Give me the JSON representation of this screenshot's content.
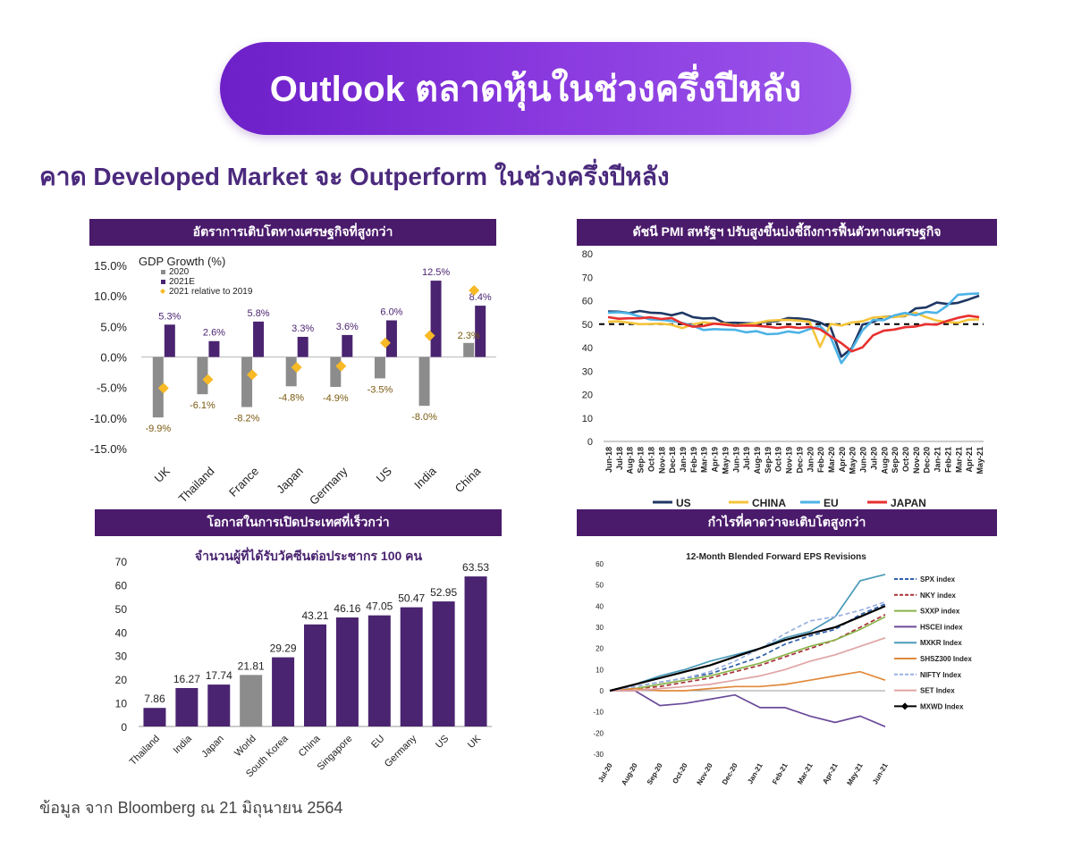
{
  "header": {
    "title": "Outlook ตลาดหุ้นในช่วงครึ่งปีหลัง",
    "subtitle": "คาด Developed Market จะ Outperform ในช่วงครึ่งปีหลัง"
  },
  "footer": "ข้อมูล จาก Bloomberg ณ 21 มิถุนายน 2564",
  "panels": {
    "gdp_header": "อัตราการเติบโตทางเศรษฐกิจที่สูงกว่า",
    "pmi_header": "ดัชนี PMI สหรัฐฯ ปรับสูงขึ้นบ่งชี้ถึงการฟื้นตัวทางเศรษฐกิจ",
    "vac_header": "โอกาสในการเปิดประเทศที่เร็วกว่า",
    "eps_header": "กำไรที่คาดว่าจะเติบโตสูงกว่า"
  },
  "colors": {
    "purple_dark": "#3f1d63",
    "purple_bar": "#4a2470",
    "gray_bar": "#8c8c8c",
    "diamond": "#f7b926",
    "us": "#1f3864",
    "china": "#f4c43b",
    "eu": "#4db3e6",
    "japan": "#e8302f"
  },
  "chart_data": [
    {
      "type": "bar",
      "title": "GDP Growth (%)",
      "categories": [
        "UK",
        "Thailand",
        "France",
        "Japan",
        "Germany",
        "US",
        "India",
        "China"
      ],
      "series": [
        {
          "name": "2020",
          "values": [
            -9.9,
            -6.1,
            -8.2,
            -4.8,
            -4.9,
            -3.5,
            -8.0,
            2.3
          ],
          "labels": [
            "-9.9%",
            "-6.1%",
            "-8.2%",
            "-4.8%",
            "-4.9%",
            "-3.5%",
            "-8.0%",
            "2.3%"
          ]
        },
        {
          "name": "2021E",
          "values": [
            5.3,
            2.6,
            5.8,
            3.3,
            3.6,
            6.0,
            12.5,
            8.4
          ],
          "labels": [
            "5.3%",
            "2.6%",
            "5.8%",
            "3.3%",
            "3.6%",
            "6.0%",
            "12.5%",
            "8.4%"
          ]
        },
        {
          "name": "2021 relative to 2019",
          "values": [
            -5.1,
            -3.7,
            -2.9,
            -1.7,
            -1.5,
            2.3,
            3.5,
            10.9
          ]
        }
      ],
      "ylim": [
        -15,
        15
      ],
      "yticks": [
        "15.0%",
        "10.0%",
        "5.0%",
        "0.0%",
        "-5.0%",
        "-10.0%",
        "-15.0%"
      ],
      "legend": "top-left"
    },
    {
      "type": "line",
      "x": [
        "Jun-18",
        "Jul-18",
        "Aug-18",
        "Sep-18",
        "Oct-18",
        "Nov-18",
        "Dec-18",
        "Jan-19",
        "Feb-19",
        "Mar-19",
        "Apr-19",
        "May-19",
        "Jun-19",
        "Jul-19",
        "Aug-19",
        "Sep-19",
        "Oct-19",
        "Nov-19",
        "Dec-19",
        "Jan-20",
        "Feb-20",
        "Mar-20",
        "Apr-20",
        "May-20",
        "Jun-20",
        "Jul-20",
        "Aug-20",
        "Sep-20",
        "Oct-20",
        "Nov-20",
        "Dec-20",
        "Jan-21",
        "Feb-21",
        "Mar-21",
        "Apr-21",
        "May-21"
      ],
      "series": [
        {
          "name": "US",
          "values": [
            55.4,
            55.3,
            54.7,
            55.6,
            54.9,
            54.7,
            53.8,
            54.9,
            53.0,
            52.4,
            52.6,
            50.5,
            50.6,
            50.4,
            50.3,
            51.1,
            51.3,
            52.6,
            52.4,
            51.9,
            50.7,
            48.5,
            36.1,
            39.8,
            49.8,
            50.9,
            53.1,
            53.2,
            53.4,
            56.7,
            57.1,
            59.2,
            58.6,
            59.1,
            60.5,
            62.1
          ],
          "source_note": ""
        },
        {
          "name": "CHINA",
          "values": [
            51.0,
            51.2,
            50.6,
            50.0,
            50.1,
            50.2,
            49.7,
            48.3,
            49.9,
            50.8,
            50.2,
            50.2,
            49.4,
            49.9,
            50.4,
            51.4,
            51.7,
            51.8,
            51.5,
            51.1,
            40.3,
            50.1,
            49.4,
            50.7,
            51.2,
            52.8,
            53.1,
            53.0,
            53.6,
            54.9,
            53.0,
            51.5,
            50.9,
            50.6,
            51.9,
            52.0
          ]
        },
        {
          "name": "EU",
          "values": [
            54.9,
            55.1,
            54.6,
            53.2,
            52.0,
            51.8,
            51.4,
            50.5,
            49.3,
            47.5,
            47.9,
            47.7,
            47.6,
            46.5,
            47.0,
            45.7,
            45.9,
            46.9,
            46.3,
            47.9,
            49.2,
            44.5,
            33.4,
            39.4,
            47.4,
            51.8,
            51.7,
            53.7,
            54.8,
            53.8,
            55.2,
            54.8,
            57.9,
            62.5,
            62.9,
            63.1
          ]
        },
        {
          "name": "JAPAN",
          "values": [
            53.0,
            52.3,
            52.5,
            52.5,
            52.9,
            52.2,
            52.6,
            50.3,
            48.9,
            49.2,
            50.2,
            49.8,
            49.3,
            49.4,
            49.3,
            48.9,
            48.4,
            48.9,
            48.4,
            48.8,
            47.8,
            44.8,
            41.9,
            38.4,
            40.1,
            45.2,
            47.2,
            47.7,
            48.7,
            49.0,
            50.0,
            49.8,
            51.4,
            52.7,
            53.6,
            53.0
          ]
        }
      ],
      "threshold": 50,
      "ylim": [
        0,
        80
      ],
      "yticks": [
        "80",
        "70",
        "60",
        "50",
        "40",
        "30",
        "20",
        "10",
        "0"
      ],
      "legend": "bottom"
    },
    {
      "type": "bar",
      "title": "จำนวนผู้ที่ได้รับวัคซีนต่อประชากร 100 คน",
      "categories": [
        "Thailand",
        "India",
        "Japan",
        "World",
        "South Korea",
        "China",
        "Singapore",
        "EU",
        "Germany",
        "US",
        "UK"
      ],
      "values": [
        7.86,
        16.27,
        17.74,
        21.81,
        29.29,
        43.21,
        46.16,
        47.05,
        50.47,
        52.95,
        63.53
      ],
      "labels": [
        "7.86",
        "16.27",
        "17.74",
        "21.81",
        "29.29",
        "43.21",
        "46.16",
        "47.05",
        "50.47",
        "52.95",
        "63.53"
      ],
      "highlight": "World",
      "ylim": [
        0,
        70
      ],
      "yticks": [
        "70",
        "60",
        "50",
        "40",
        "30",
        "20",
        "10",
        "0"
      ]
    },
    {
      "type": "line",
      "title": "12-Month Blended Forward EPS Revisions",
      "x": [
        "Jul-20",
        "Aug-20",
        "Sep-20",
        "Oct-20",
        "Nov-20",
        "Dec-20",
        "Jan-21",
        "Feb-21",
        "Mar-21",
        "Apr-21",
        "May-21",
        "Jun-21"
      ],
      "series": [
        {
          "name": "SPX index",
          "color": "#2f5fa8",
          "dash": "5,3",
          "values": [
            0,
            2,
            4,
            6,
            8,
            12,
            16,
            22,
            26,
            29,
            36,
            41
          ]
        },
        {
          "name": "NKY index",
          "color": "#a8323a",
          "dash": "5,3",
          "values": [
            0,
            1,
            2,
            4,
            6,
            9,
            12,
            16,
            20,
            24,
            30,
            36
          ]
        },
        {
          "name": "SXXP index",
          "color": "#8ab44a",
          "dash": "",
          "values": [
            0,
            1,
            3,
            5,
            7,
            10,
            13,
            17,
            21,
            24,
            29,
            35
          ]
        },
        {
          "name": "HSCEI index",
          "color": "#6b4a9a",
          "dash": "",
          "values": [
            0,
            0,
            -7,
            -6,
            -4,
            -2,
            -8,
            -8,
            -12,
            -15,
            -12,
            -17
          ]
        },
        {
          "name": "MXKR Index",
          "color": "#4a9ab8",
          "dash": "",
          "values": [
            0,
            3,
            7,
            10,
            14,
            17,
            20,
            25,
            28,
            35,
            52,
            55
          ]
        },
        {
          "name": "SHSZ300 Index",
          "color": "#e0893a",
          "dash": "",
          "values": [
            0,
            1,
            0,
            0,
            1,
            2,
            2,
            3,
            5,
            7,
            9,
            5
          ]
        },
        {
          "name": "NIFTY Index",
          "color": "#9ab0e0",
          "dash": "5,3",
          "values": [
            0,
            2,
            4,
            6,
            9,
            14,
            20,
            27,
            33,
            35,
            38,
            42
          ]
        },
        {
          "name": "SET Index",
          "color": "#e0a4a4",
          "dash": "",
          "values": [
            0,
            0,
            1,
            2,
            3,
            5,
            7,
            10,
            14,
            17,
            21,
            25
          ]
        },
        {
          "name": "MXWD Index",
          "color": "#000000",
          "dash": "",
          "marker": "diamond",
          "values": [
            0,
            3,
            6,
            9,
            12,
            16,
            20,
            24,
            27,
            30,
            35,
            40
          ]
        }
      ],
      "ylim": [
        -30,
        60
      ],
      "yticks": [
        "60",
        "50",
        "40",
        "30",
        "20",
        "10",
        "0",
        "-10",
        "-20",
        "-30"
      ],
      "legend": "right"
    }
  ]
}
